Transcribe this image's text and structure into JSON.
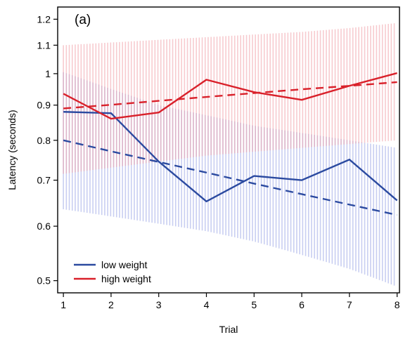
{
  "chart_data": {
    "type": "line",
    "panel_label": "(a)",
    "xlabel": "Trial",
    "ylabel": "Latency (seconds)",
    "x": [
      1,
      2,
      3,
      4,
      5,
      6,
      7,
      8
    ],
    "xlim": [
      0.88,
      8.05
    ],
    "ylim": [
      0.48,
      1.25
    ],
    "y_scale": "log",
    "y_ticks": [
      0.5,
      0.6,
      0.7,
      0.8,
      0.9,
      1,
      1.1,
      1.2
    ],
    "y_tick_labels": [
      "0.5",
      "0.6",
      "0.7",
      "0.8",
      "0.9",
      "1",
      "1.1",
      "1.2"
    ],
    "x_ticks": [
      1,
      2,
      3,
      4,
      5,
      6,
      7,
      8
    ],
    "grid": false,
    "legend_position": "bottom-left",
    "series": [
      {
        "name": "low weight",
        "color": "#2b4aa0",
        "band_color": "#9aa6e6",
        "observed": [
          0.88,
          0.876,
          0.745,
          0.652,
          0.71,
          0.7,
          0.75,
          0.654
        ],
        "fitted": [
          0.8,
          0.771,
          0.744,
          0.718,
          0.692,
          0.668,
          0.645,
          0.623
        ],
        "band_lower": [
          0.635,
          0.62,
          0.605,
          0.59,
          0.57,
          0.545,
          0.52,
          0.49
        ],
        "band_upper": [
          1.005,
          0.95,
          0.9,
          0.87,
          0.84,
          0.82,
          0.8,
          0.78
        ]
      },
      {
        "name": "high weight",
        "color": "#d9202a",
        "band_color": "#f0a0a8",
        "observed": [
          0.935,
          0.86,
          0.878,
          0.98,
          0.94,
          0.916,
          0.96,
          1.002
        ],
        "fitted": [
          0.89,
          0.901,
          0.913,
          0.925,
          0.937,
          0.949,
          0.96,
          0.972
        ],
        "band_lower": [
          0.715,
          0.73,
          0.745,
          0.76,
          0.77,
          0.78,
          0.79,
          0.8
        ],
        "band_upper": [
          1.1,
          1.11,
          1.12,
          1.13,
          1.14,
          1.15,
          1.165,
          1.185
        ]
      }
    ]
  }
}
